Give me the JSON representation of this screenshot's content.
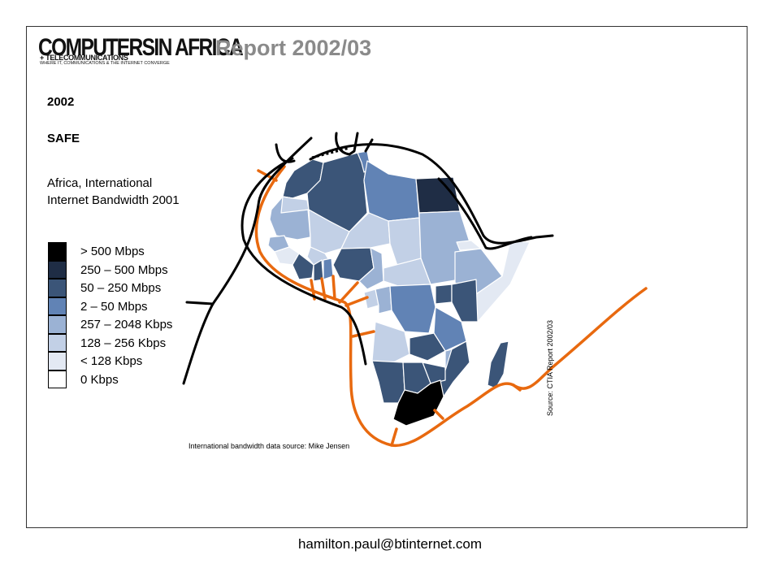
{
  "header": {
    "logo_main": "COMPUTERSIN AFRICA",
    "logo_sub": "+ TELECOMMUNICATIONS",
    "logo_tagline": "WHERE IT, COMMUNICATIONS & THE INTERNET CONVERGE",
    "report_title": "Report 2002/03"
  },
  "map_info": {
    "year": "2002",
    "cable_name": "SAFE",
    "subtitle": "Africa, International Internet Bandwidth 2001"
  },
  "legend": [
    {
      "label": "> 500 Mbps",
      "color": "#000000"
    },
    {
      "label": "250 – 500 Mbps",
      "color": "#1f2d45"
    },
    {
      "label": "50 – 250 Mbps",
      "color": "#3b5578"
    },
    {
      "label": "2 – 50 Mbps",
      "color": "#6183b5"
    },
    {
      "label": "257 – 2048 Kbps",
      "color": "#9bb2d4"
    },
    {
      "label": "128 – 256 Kbps",
      "color": "#c2d0e6"
    },
    {
      "label": "< 128 Kbps",
      "color": "#e3e9f3"
    },
    {
      "label": "0 Kbps",
      "color": "#ffffff"
    }
  ],
  "colors": {
    "cable_existing": "#000000",
    "cable_safe": "#e8690f",
    "title_gray": "#8a8a8a"
  },
  "sources": {
    "bandwidth_source": "International bandwidth data source: Mike Jensen",
    "report_source": "Source: CTIA Report 2002/03"
  },
  "footer": {
    "email": "hamilton.paul@btinternet.com"
  }
}
